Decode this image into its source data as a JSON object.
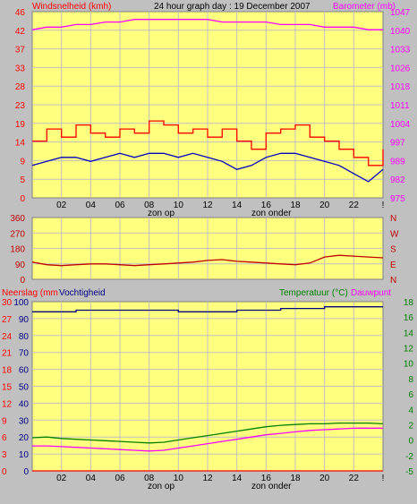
{
  "title": "24 hour graph day : 19 December 2007",
  "colors": {
    "bg": "#c0c0c0",
    "plot": "#ffff80",
    "grid": "#c0c0c0",
    "wind_gust": "#ff0000",
    "wind_avg": "#0000c0",
    "baro": "#ff00ff",
    "dir": "#c00000",
    "temp": "#008000",
    "dew": "#ff00ff",
    "hum": "#000080",
    "rain": "#ff0000",
    "rain_axis": "#ff0000",
    "hum_axis": "#000080",
    "temp_axis": "#008000"
  },
  "x_ticks": [
    "02",
    "04",
    "06",
    "08",
    "10",
    "12",
    "14",
    "16",
    "18",
    "20",
    "22",
    "!"
  ],
  "sun_labels": {
    "rise": "zon op",
    "set": "zon onder"
  },
  "chart_data": [
    {
      "type": "line",
      "name": "wind-barometer",
      "left_label": "Windsnelheid (kmh)",
      "right_label": "Barometer (mb)",
      "left_ticks": [
        "46",
        "42",
        "37",
        "33",
        "28",
        "23",
        "19",
        "14",
        "9",
        "5",
        "0"
      ],
      "right_ticks": [
        "1047",
        "1040",
        "1033",
        "1026",
        "1018",
        "1011",
        "1004",
        "997",
        "989",
        "982",
        "975"
      ],
      "ylim_left": [
        0,
        46
      ],
      "ylim_right": [
        975,
        1047
      ],
      "x": [
        0,
        1,
        2,
        3,
        4,
        5,
        6,
        7,
        8,
        9,
        10,
        11,
        12,
        13,
        14,
        15,
        16,
        17,
        18,
        19,
        20,
        21,
        22,
        23,
        24
      ],
      "series": [
        {
          "name": "gust",
          "values": [
            14,
            17,
            15,
            18,
            16,
            15,
            17,
            16,
            19,
            18,
            16,
            17,
            15,
            17,
            14,
            12,
            16,
            17,
            18,
            15,
            14,
            12,
            10,
            8,
            12
          ]
        },
        {
          "name": "average",
          "values": [
            8,
            9,
            10,
            10,
            9,
            10,
            11,
            10,
            11,
            11,
            10,
            11,
            10,
            9,
            7,
            8,
            10,
            11,
            11,
            10,
            9,
            8,
            6,
            4,
            7
          ]
        },
        {
          "name": "barometer",
          "values": [
            1040,
            1041,
            1041,
            1042,
            1042,
            1043,
            1043,
            1044,
            1044,
            1044,
            1044,
            1044,
            1044,
            1043,
            1043,
            1043,
            1043,
            1042,
            1042,
            1042,
            1041,
            1041,
            1041,
            1040,
            1040
          ]
        }
      ]
    },
    {
      "type": "line",
      "name": "wind-direction",
      "left_ticks": [
        "360",
        "270",
        "180",
        "90",
        "0"
      ],
      "right_ticks": [
        "N",
        "W",
        "S",
        "E",
        "N"
      ],
      "ylim": [
        0,
        360
      ],
      "x": [
        0,
        1,
        2,
        3,
        4,
        5,
        6,
        7,
        8,
        9,
        10,
        11,
        12,
        13,
        14,
        15,
        16,
        17,
        18,
        19,
        20,
        21,
        22,
        23,
        24
      ],
      "series": [
        {
          "name": "direction",
          "values": [
            100,
            85,
            80,
            85,
            90,
            90,
            85,
            80,
            85,
            90,
            95,
            100,
            110,
            115,
            105,
            100,
            95,
            90,
            85,
            95,
            130,
            140,
            135,
            130,
            125
          ]
        }
      ]
    },
    {
      "type": "line",
      "name": "rain-humidity-temperature",
      "left_label_1": "Neerslag (mm",
      "left_label_2": "Vochtigheid",
      "right_label_1": "Temperatuur (°C)",
      "right_label_2": "Dauwpunt",
      "rain_ticks": [
        "30",
        "27",
        "24",
        "21",
        "18",
        "15",
        "12",
        "9",
        "6",
        "3",
        "0"
      ],
      "hum_ticks": [
        "100",
        "90",
        "80",
        "70",
        "60",
        "50",
        "40",
        "30",
        "20",
        "10",
        "0"
      ],
      "temp_ticks": [
        "18",
        "16",
        "14",
        "12",
        "10",
        "8",
        "6",
        "4",
        "2",
        "0",
        "-2",
        "-5"
      ],
      "ylim_temp": [
        -5,
        18
      ],
      "ylim_hum": [
        0,
        100
      ],
      "ylim_rain": [
        0,
        30
      ],
      "x": [
        0,
        1,
        2,
        3,
        4,
        5,
        6,
        7,
        8,
        9,
        10,
        11,
        12,
        13,
        14,
        15,
        16,
        17,
        18,
        19,
        20,
        21,
        22,
        23,
        24
      ],
      "series": [
        {
          "name": "humidity",
          "values": [
            94,
            94,
            94,
            95,
            95,
            95,
            95,
            95,
            95,
            95,
            94,
            94,
            94,
            94,
            95,
            95,
            95,
            96,
            96,
            96,
            97,
            97,
            97,
            97,
            97
          ]
        },
        {
          "name": "temperature",
          "values": [
            -0.5,
            -0.4,
            -0.6,
            -0.7,
            -0.8,
            -0.9,
            -1.0,
            -1.1,
            -1.2,
            -1.1,
            -0.8,
            -0.5,
            -0.2,
            0.1,
            0.4,
            0.7,
            1.0,
            1.2,
            1.3,
            1.4,
            1.4,
            1.5,
            1.5,
            1.5,
            1.4
          ]
        },
        {
          "name": "dewpoint",
          "values": [
            -1.6,
            -1.6,
            -1.7,
            -1.8,
            -1.9,
            -2.0,
            -2.1,
            -2.2,
            -2.3,
            -2.2,
            -1.9,
            -1.6,
            -1.3,
            -1.0,
            -0.7,
            -0.4,
            -0.1,
            0.1,
            0.3,
            0.5,
            0.6,
            0.7,
            0.8,
            0.8,
            0.8
          ]
        },
        {
          "name": "rain",
          "values": [
            0,
            0,
            0,
            0,
            0,
            0,
            0,
            0,
            0,
            0,
            0,
            0,
            0,
            0,
            0,
            0,
            0,
            0,
            0,
            0,
            0,
            0,
            0,
            0,
            0
          ]
        }
      ]
    }
  ]
}
